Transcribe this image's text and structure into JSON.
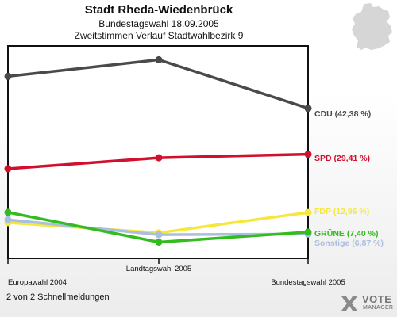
{
  "header": {
    "title": "Stadt Rheda-Wiedenbrück",
    "subtitle": "Bundestagswahl 18.09.2005",
    "subtitle2": "Zweitstimmen Verlauf Stadtwahlbezirk 9"
  },
  "footer": {
    "text": "2 von 2 Schnellmeldungen"
  },
  "logo": {
    "word1": "VOTE",
    "word2": "MANAGER"
  },
  "map": {
    "icon": "germany-map-icon",
    "color": "#d6d6d6"
  },
  "chart_data": {
    "type": "line",
    "categories": [
      "Europawahl 2004",
      "Landtagswahl 2005",
      "Bundestagswahl 2005"
    ],
    "ylim": [
      0,
      60
    ],
    "grid": false,
    "legend": "right-end-labels",
    "series": [
      {
        "name": "CDU",
        "label": "CDU (42,38 %)",
        "color": "#4a4a4a",
        "values": [
          51.4,
          56.1,
          42.38
        ]
      },
      {
        "name": "SPD",
        "label": "SPD (29,41 %)",
        "color": "#d0102c",
        "values": [
          25.3,
          28.4,
          29.41
        ]
      },
      {
        "name": "FDP",
        "label": "FDP (12,96 %)",
        "color": "#f5e83a",
        "values": [
          10.1,
          7.2,
          12.96
        ]
      },
      {
        "name": "GRÜNE",
        "label": "GRÜNE (7,40 %)",
        "color": "#33bb1f",
        "values": [
          13.0,
          4.6,
          7.4
        ]
      },
      {
        "name": "Sonstige",
        "label": "Sonstige (6,87 %)",
        "color": "#aabfe0",
        "values": [
          10.9,
          6.7,
          6.87
        ]
      }
    ]
  }
}
